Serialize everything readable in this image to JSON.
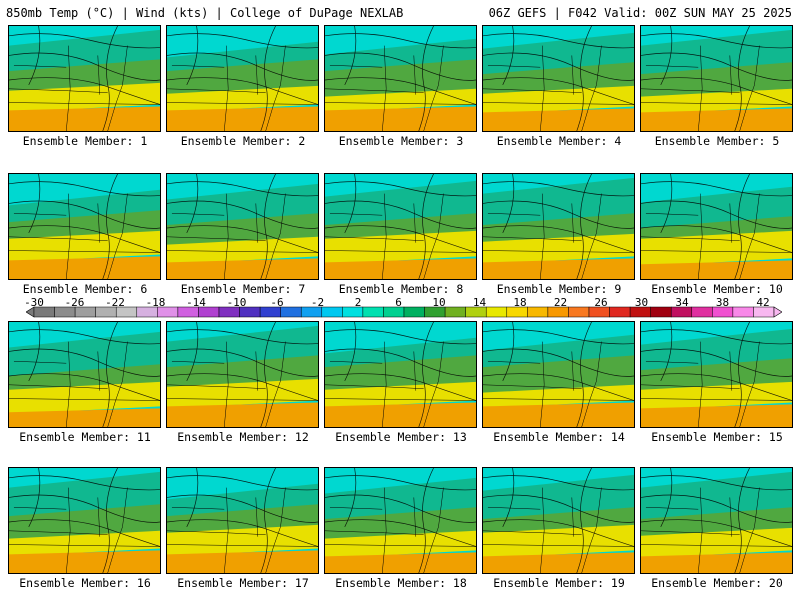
{
  "header": {
    "left": "850mb Temp (°C) | Wind (kts) | College of DuPage NEXLAB",
    "right": "06Z GEFS | F042 Valid: 00Z SUN MAY 25 2025"
  },
  "members": [
    "Ensemble Member: 1",
    "Ensemble Member: 2",
    "Ensemble Member: 3",
    "Ensemble Member: 4",
    "Ensemble Member: 5",
    "Ensemble Member: 6",
    "Ensemble Member: 7",
    "Ensemble Member: 8",
    "Ensemble Member: 9",
    "Ensemble Member: 10",
    "Ensemble Member: 11",
    "Ensemble Member: 12",
    "Ensemble Member: 13",
    "Ensemble Member: 14",
    "Ensemble Member: 15",
    "Ensemble Member: 16",
    "Ensemble Member: 17",
    "Ensemble Member: 18",
    "Ensemble Member: 19",
    "Ensemble Member: 20"
  ],
  "colorbar": {
    "labels": [
      "-30",
      "-26",
      "-22",
      "-18",
      "-14",
      "-10",
      "-6",
      "-2",
      "2",
      "6",
      "10",
      "14",
      "18",
      "22",
      "26",
      "30",
      "34",
      "38",
      "42"
    ],
    "colors": [
      "#7a7a7a",
      "#8c8c8c",
      "#9e9e9e",
      "#b0b0b0",
      "#c4c4c4",
      "#d6b0e0",
      "#e090e8",
      "#d060e0",
      "#b040d0",
      "#8030c0",
      "#5030c0",
      "#3040d0",
      "#2070e0",
      "#10a0f0",
      "#00c8f0",
      "#00e0e0",
      "#00e0b0",
      "#00d090",
      "#00b060",
      "#30a030",
      "#70b020",
      "#b0d010",
      "#e8e800",
      "#f8d800",
      "#f8b800",
      "#f89800",
      "#f87820",
      "#f05020",
      "#e02820",
      "#c01010",
      "#a00010",
      "#c01060",
      "#e030a0",
      "#f050d0",
      "#f888e8",
      "#f8b8f0"
    ]
  },
  "colors": {
    "cold": "#00d8d0",
    "cool": "#10b890",
    "mild": "#50a840",
    "warm": "#e8e000",
    "hot": "#f0a000"
  }
}
